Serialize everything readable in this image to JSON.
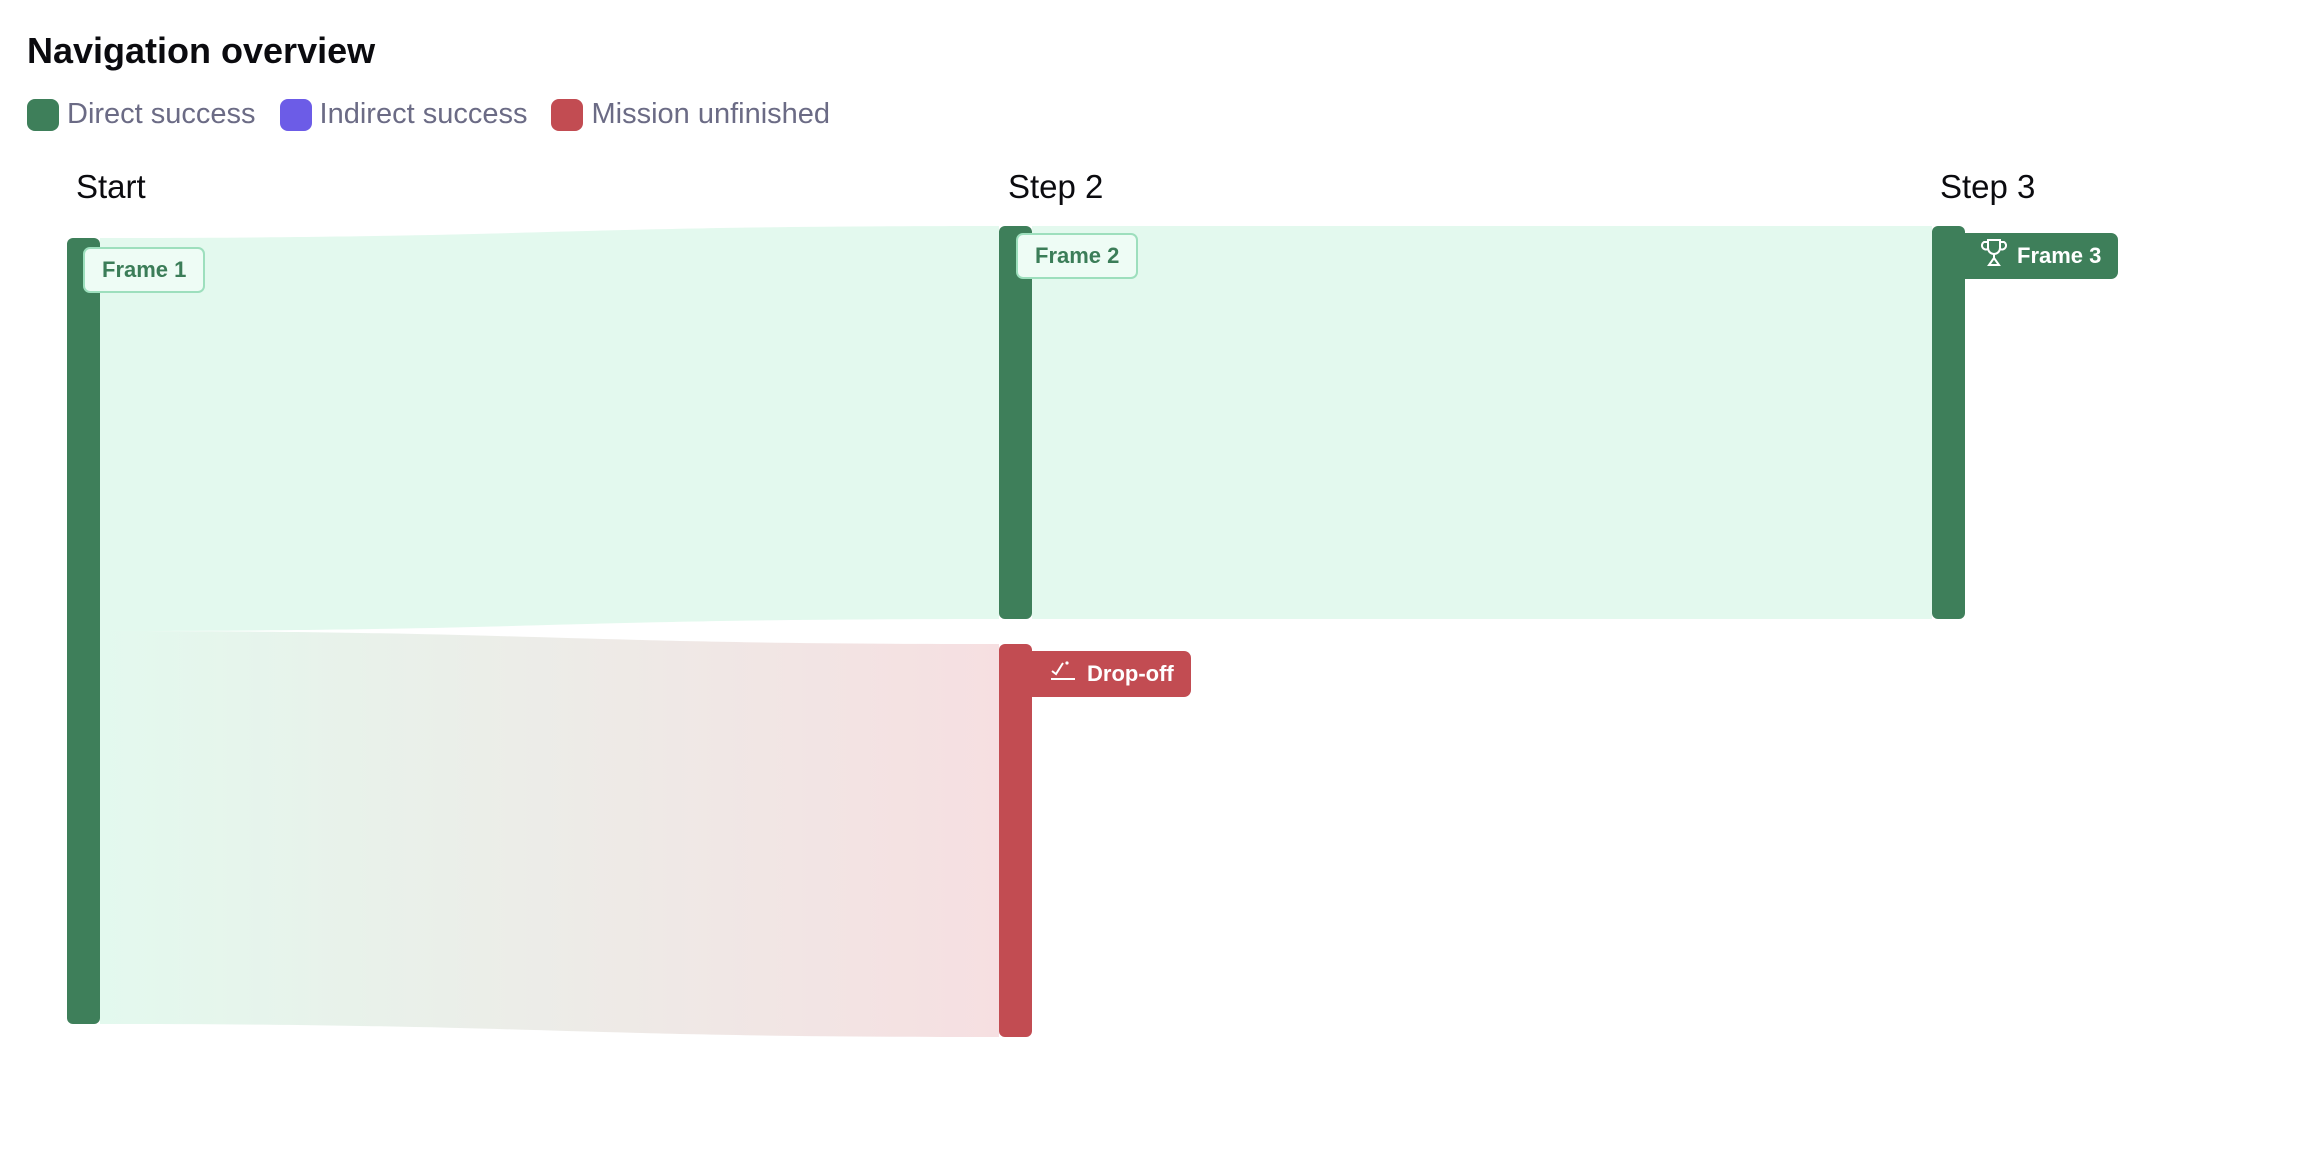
{
  "title": "Navigation overview",
  "legend": [
    {
      "label": "Direct success",
      "color": "#3e7f5a"
    },
    {
      "label": "Indirect success",
      "color": "#6c5ce7"
    },
    {
      "label": "Mission unfinished",
      "color": "#c24c52"
    }
  ],
  "chart_data": {
    "type": "sankey",
    "steps": [
      "Start",
      "Step 2",
      "Step 3"
    ],
    "nodes": [
      {
        "id": "frame1",
        "label": "Frame 1",
        "step": 0,
        "color": "#3e7f5a",
        "icon": ""
      },
      {
        "id": "frame2",
        "label": "Frame 2",
        "step": 1,
        "color": "#3e7f5a",
        "icon": ""
      },
      {
        "id": "dropoff",
        "label": "Drop-off",
        "step": 1,
        "color": "#c24c52",
        "icon": "drop-off-icon"
      },
      {
        "id": "frame3",
        "label": "Frame 3",
        "step": 2,
        "color": "#3e7f5a",
        "icon": "trophy-icon"
      }
    ],
    "links": [
      {
        "source": "frame1",
        "target": "frame2",
        "value": 50
      },
      {
        "source": "frame1",
        "target": "dropoff",
        "value": 50
      },
      {
        "source": "frame2",
        "target": "frame3",
        "value": 50
      }
    ],
    "colors": {
      "flow_success": "#e3f9ee",
      "flow_dropoff": "#f6dfe1"
    }
  }
}
